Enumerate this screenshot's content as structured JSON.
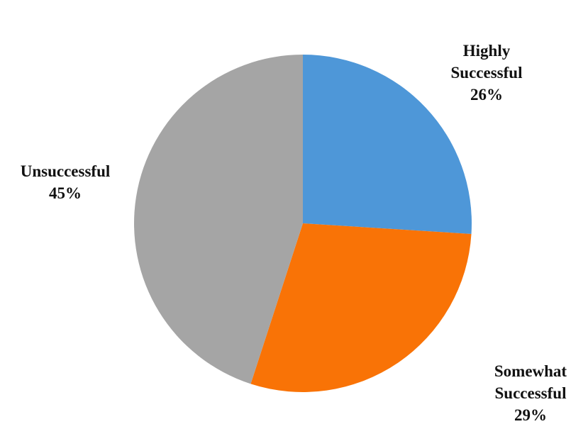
{
  "chart_data": {
    "type": "pie",
    "categories": [
      "Highly Successful",
      "Somewhat Successful",
      "Unsuccessful"
    ],
    "values": [
      26,
      29,
      45
    ],
    "value_labels": [
      "26%",
      "29%",
      "45%"
    ],
    "colors": [
      "#4e97d8",
      "#f97306",
      "#a5a5a5"
    ]
  }
}
